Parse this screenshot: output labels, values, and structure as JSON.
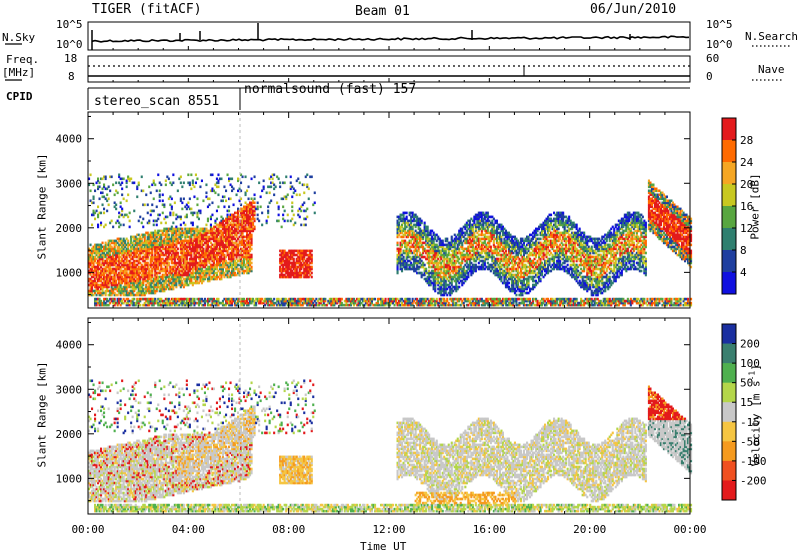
{
  "header": {
    "station": "TIGER (fitACF)",
    "beam": "Beam 01",
    "date": "06/Jun/2010"
  },
  "top_panels": {
    "nsky_label": "N.Sky",
    "nsky_ticks": [
      "10^5",
      "10^0"
    ],
    "nsearch_label": "N.Search",
    "nsearch_ticks": [
      "10^5",
      "10^0"
    ],
    "freq_label_1": "Freq.",
    "freq_label_2": "[MHz]",
    "freq_ticks": [
      "18",
      "8"
    ],
    "nave_label": "Nave",
    "nave_ticks": [
      "60",
      "0"
    ],
    "cpid_label": "CPID",
    "cpid_modes": [
      {
        "name": "stereo_scan 8551",
        "start_hour": 0,
        "end_hour": 6
      },
      {
        "name": "normalsound (fast) 157",
        "start_hour": 6,
        "end_hour": 24
      }
    ]
  },
  "chart_data": [
    {
      "type": "heatmap",
      "panel": "power",
      "ylabel": "Slant Range [km]",
      "xlabel": "Time UT",
      "xlim": [
        0,
        24
      ],
      "ylim": [
        200,
        4600
      ],
      "yticks": [
        1000,
        2000,
        3000,
        4000
      ],
      "xtick_labels": [
        "00:00",
        "04:00",
        "08:00",
        "12:00",
        "16:00",
        "20:00",
        "00:00"
      ],
      "colorbar": {
        "label": "Power [dB]",
        "ticks": [
          "28",
          "24",
          "20",
          "16",
          "12",
          "8",
          "4"
        ],
        "colors": [
          "#e31a1c",
          "#ff6a00",
          "#f5a623",
          "#c8c820",
          "#58a640",
          "#2f7f6f",
          "#1f3f9f",
          "#1010e0"
        ]
      },
      "regions": [
        {
          "t0": 0.0,
          "t1": 6.5,
          "r0": 250,
          "r1": 2900,
          "dominant": "mixed"
        },
        {
          "t0": 6.5,
          "t1": 9.0,
          "r0": 500,
          "r1": 3200,
          "dominant": "red"
        },
        {
          "t0": 12.0,
          "t1": 22.0,
          "r0": 250,
          "r1": 2400,
          "dominant": "blue-green"
        },
        {
          "t0": 22.3,
          "t1": 24.0,
          "r0": 800,
          "r1": 3200,
          "dominant": "red"
        }
      ]
    },
    {
      "type": "heatmap",
      "panel": "velocity",
      "ylabel": "Slant Range [km]",
      "xlabel": "Time UT",
      "xlim": [
        0,
        24
      ],
      "ylim": [
        200,
        4600
      ],
      "yticks": [
        1000,
        2000,
        3000,
        4000
      ],
      "xtick_labels": [
        "00:00",
        "04:00",
        "08:00",
        "12:00",
        "16:00",
        "20:00",
        "00:00"
      ],
      "colorbar": {
        "label": "Velocity [m s^-1]",
        "ticks": [
          "200",
          "100",
          "50",
          "15",
          "-15",
          "-50",
          "-100",
          "-200"
        ],
        "colors": [
          "#1a2fa0",
          "#3a7f6f",
          "#4fb04f",
          "#b4d64a",
          "#c8c8c8",
          "#f5c542",
          "#f59a1e",
          "#f05020",
          "#e31a1c"
        ]
      },
      "regions": [
        {
          "t0": 0.0,
          "t1": 9.0,
          "r0": 250,
          "r1": 3200,
          "dominant": "gray"
        },
        {
          "t0": 12.0,
          "t1": 24.0,
          "r0": 250,
          "r1": 2400,
          "dominant": "gray"
        },
        {
          "t0": 22.3,
          "t1": 24.0,
          "r0": 2300,
          "r1": 3200,
          "dominant": "red"
        }
      ]
    }
  ],
  "x_axis_title": "Time UT"
}
